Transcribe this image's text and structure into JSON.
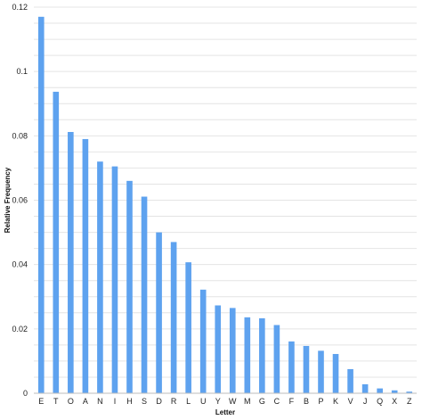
{
  "chart_data": {
    "type": "bar",
    "title": "",
    "xlabel": "Letter",
    "ylabel": "Relative Frequency",
    "categories": [
      "E",
      "T",
      "O",
      "A",
      "N",
      "I",
      "H",
      "S",
      "D",
      "R",
      "L",
      "U",
      "Y",
      "W",
      "M",
      "G",
      "C",
      "F",
      "B",
      "P",
      "K",
      "V",
      "J",
      "Q",
      "X",
      "Z"
    ],
    "values": [
      0.117,
      0.0937,
      0.0812,
      0.079,
      0.072,
      0.0705,
      0.066,
      0.0611,
      0.05,
      0.047,
      0.0407,
      0.0322,
      0.0273,
      0.0265,
      0.0236,
      0.0233,
      0.0212,
      0.0161,
      0.0147,
      0.0132,
      0.0122,
      0.0075,
      0.0028,
      0.0015,
      0.0009,
      0.0005
    ],
    "ylim": [
      0,
      0.12
    ],
    "yticks": [
      0,
      0.02,
      0.04,
      0.06,
      0.08,
      0.1,
      0.12
    ],
    "ytick_labels": [
      "0",
      "0.02",
      "0.04",
      "0.06",
      "0.08",
      "0.1",
      "0.12"
    ],
    "grid": true,
    "legend": "none",
    "bar_color": "#5ea2ef"
  }
}
